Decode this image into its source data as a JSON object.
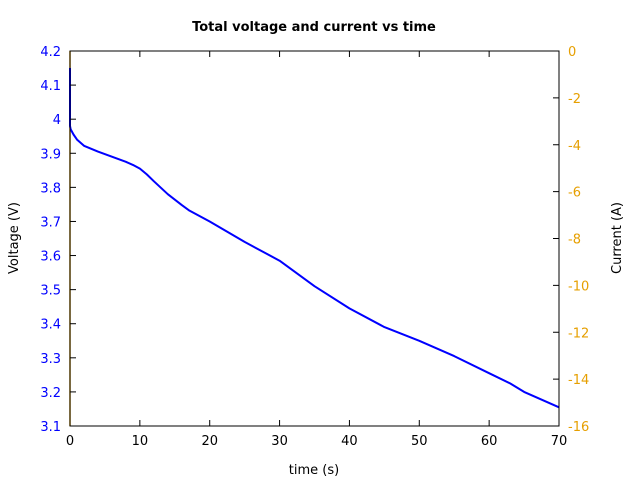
{
  "chart_data": {
    "type": "line",
    "title": "Total voltage and current vs time",
    "xlabel": "time (s)",
    "ylabel_left": "Voltage (V)",
    "ylabel_right": "Current (A)",
    "xlim": [
      0,
      70
    ],
    "ylim_left": [
      3.1,
      4.2
    ],
    "ylim_right": [
      -16,
      0
    ],
    "x_ticks": [
      "0",
      "10",
      "20",
      "30",
      "40",
      "50",
      "60",
      "70"
    ],
    "y_ticks_left": [
      "3.1",
      "3.2",
      "3.3",
      "3.4",
      "3.5",
      "3.6",
      "3.7",
      "3.8",
      "3.9",
      "4",
      "4.1",
      "4.2"
    ],
    "y_ticks_right": [
      "-16",
      "-14",
      "-12",
      "-10",
      "-8",
      "-6",
      "-4",
      "-2",
      "0"
    ],
    "grid": false,
    "legend": null,
    "colors": {
      "voltage": "#0000ff",
      "current": "#e69f00",
      "axis": "#000000"
    },
    "series": [
      {
        "name": "Voltage",
        "axis": "left",
        "color": "#0000ff",
        "x": [
          0,
          0,
          0.1,
          0.5,
          1,
          2,
          4,
          6,
          8,
          9,
          10,
          11,
          12,
          14,
          16,
          17,
          20,
          25,
          30,
          35,
          40,
          45,
          50,
          55,
          60,
          63,
          65,
          70
        ],
        "values": [
          4.15,
          3.98,
          3.97,
          3.955,
          3.94,
          3.922,
          3.905,
          3.89,
          3.875,
          3.866,
          3.855,
          3.838,
          3.818,
          3.78,
          3.748,
          3.733,
          3.7,
          3.64,
          3.585,
          3.51,
          3.445,
          3.39,
          3.35,
          3.305,
          3.255,
          3.225,
          3.2,
          3.155
        ]
      },
      {
        "name": "Current",
        "axis": "right",
        "color": "#e69f00",
        "x": [
          0,
          0
        ],
        "values": [
          0,
          -16
        ]
      }
    ]
  }
}
